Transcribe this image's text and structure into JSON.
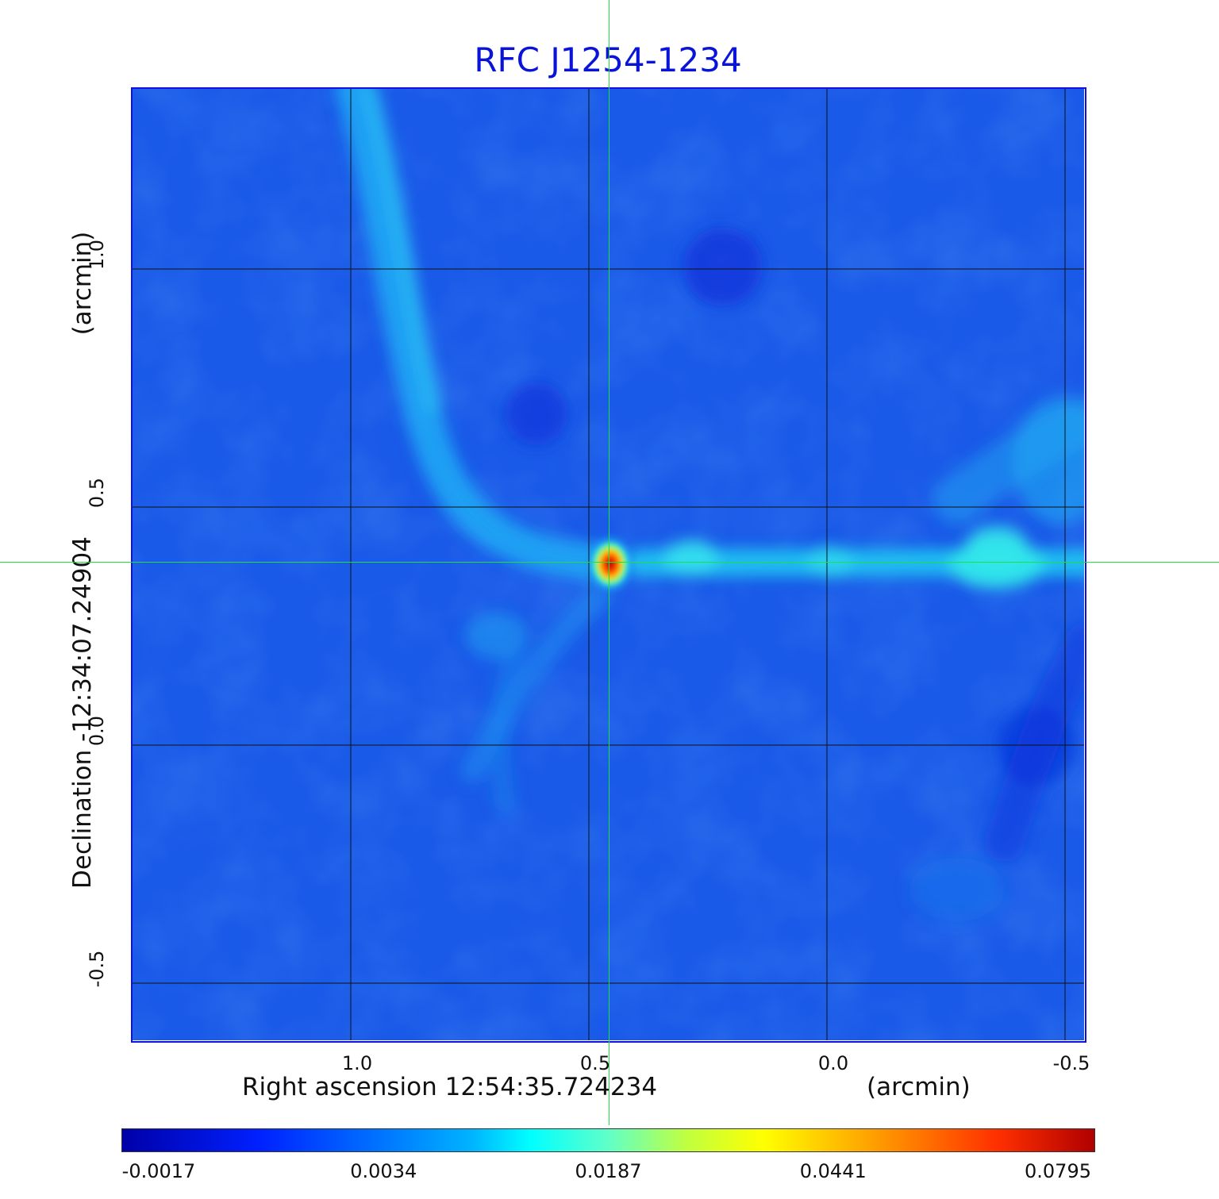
{
  "chart_data": {
    "type": "heatmap",
    "title": "RFC J1254-1234",
    "xlabel": "Right ascension  12:54:35.724234",
    "xunit": "(arcmin)",
    "ylabel": "Declination  -12:34:07.24904",
    "yunit": "(arcmin)",
    "x_ticks": [
      "1.0",
      "0.5",
      "0.0",
      "-0.5"
    ],
    "y_ticks": [
      "1.0",
      "0.5",
      "0.0",
      "-0.5"
    ],
    "xlim": [
      1.46,
      -0.54
    ],
    "ylim": [
      -0.62,
      1.38
    ],
    "grid": true,
    "colormap": "jet",
    "colorbar_ticks": [
      "-0.0017",
      "0.0034",
      "0.0187",
      "0.0441",
      "0.0795"
    ],
    "crosshair": {
      "x": 0.455,
      "y": 0.38
    },
    "peak": {
      "x": 0.455,
      "y": 0.38,
      "value": 0.0795
    }
  },
  "colors": {
    "title": "#0a14d8",
    "background_field": "#1a5ae8",
    "crosshair": "#22dd44",
    "grid": "#111111"
  }
}
